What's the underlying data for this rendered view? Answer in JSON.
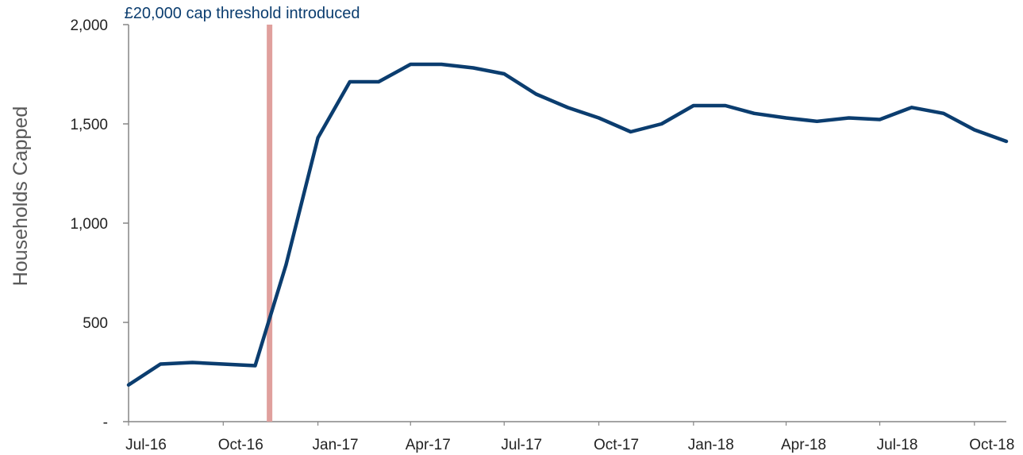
{
  "chart_data": {
    "type": "line",
    "ylabel": "Households Capped",
    "ylim": [
      0,
      2000
    ],
    "y_ticks": [
      {
        "value": 0,
        "label": "-"
      },
      {
        "value": 500,
        "label": "500"
      },
      {
        "value": 1000,
        "label": "1,000"
      },
      {
        "value": 1500,
        "label": "1,500"
      },
      {
        "value": 2000,
        "label": "2,000"
      }
    ],
    "x_ticks": [
      {
        "date": "2016-07",
        "label": "Jul-16"
      },
      {
        "date": "2016-10",
        "label": "Oct-16"
      },
      {
        "date": "2017-01",
        "label": "Jan-17"
      },
      {
        "date": "2017-04",
        "label": "Apr-17"
      },
      {
        "date": "2017-07",
        "label": "Jul-17"
      },
      {
        "date": "2017-10",
        "label": "Oct-17"
      },
      {
        "date": "2018-01",
        "label": "Jan-18"
      },
      {
        "date": "2018-04",
        "label": "Apr-18"
      },
      {
        "date": "2018-07",
        "label": "Jul-18"
      },
      {
        "date": "2018-10",
        "label": "Oct-18"
      }
    ],
    "grid": false,
    "line_color": "#0b3d6f",
    "series": [
      {
        "points": [
          {
            "x": "2016-07",
            "y": 185
          },
          {
            "x": "2016-08",
            "y": 290
          },
          {
            "x": "2016-09",
            "y": 298
          },
          {
            "x": "2016-10",
            "y": 290
          },
          {
            "x": "2016-11",
            "y": 282
          },
          {
            "x": "2016-12",
            "y": 790
          },
          {
            "x": "2017-01",
            "y": 1430
          },
          {
            "x": "2017-02",
            "y": 1712
          },
          {
            "x": "2017-03",
            "y": 1712
          },
          {
            "x": "2017-04",
            "y": 1800
          },
          {
            "x": "2017-05",
            "y": 1800
          },
          {
            "x": "2017-06",
            "y": 1782
          },
          {
            "x": "2017-07",
            "y": 1752
          },
          {
            "x": "2017-08",
            "y": 1650
          },
          {
            "x": "2017-09",
            "y": 1582
          },
          {
            "x": "2017-10",
            "y": 1530
          },
          {
            "x": "2017-11",
            "y": 1460
          },
          {
            "x": "2017-12",
            "y": 1500
          },
          {
            "x": "2018-01",
            "y": 1592
          },
          {
            "x": "2018-02",
            "y": 1592
          },
          {
            "x": "2018-03",
            "y": 1553
          },
          {
            "x": "2018-04",
            "y": 1530
          },
          {
            "x": "2018-05",
            "y": 1513
          },
          {
            "x": "2018-06",
            "y": 1530
          },
          {
            "x": "2018-07",
            "y": 1522
          },
          {
            "x": "2018-08",
            "y": 1583
          },
          {
            "x": "2018-09",
            "y": 1553
          },
          {
            "x": "2018-10",
            "y": 1470
          },
          {
            "x": "2018-11",
            "y": 1412
          }
        ]
      }
    ],
    "annotations": [
      {
        "type": "vertical-line",
        "x": "2016-11-15",
        "color": "#e0a09d",
        "label": "£20,000 cap threshold introduced"
      }
    ]
  }
}
